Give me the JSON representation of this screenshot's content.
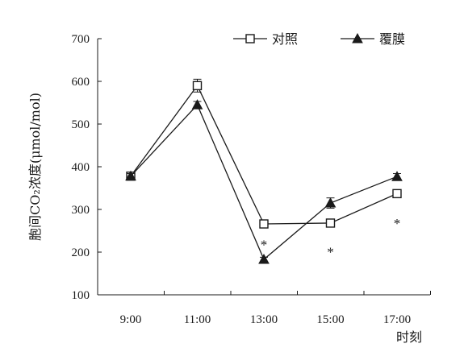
{
  "chart_data": {
    "type": "line",
    "categories": [
      "9:00",
      "11:00",
      "13:00",
      "15:00",
      "17:00"
    ],
    "xlabel": "时刻",
    "ylabel": "胞间CO₂浓度(μmol/mol)",
    "ylim": [
      100,
      700
    ],
    "yticks": [
      100,
      200,
      300,
      400,
      500,
      600,
      700
    ],
    "grid": false,
    "legend_position": "top-right",
    "series": [
      {
        "name": "对照",
        "marker": "open-square",
        "values": [
          378,
          590,
          266,
          268,
          337
        ],
        "errors": [
          6,
          15,
          6,
          8,
          8
        ]
      },
      {
        "name": "覆膜",
        "marker": "filled-triangle",
        "values": [
          378,
          545,
          183,
          315,
          377
        ],
        "errors": [
          6,
          8,
          5,
          12,
          7
        ]
      }
    ],
    "annotations": [
      {
        "text": "*",
        "category": "13:00",
        "y": 222
      },
      {
        "text": "*",
        "category": "15:00",
        "y": 205
      },
      {
        "text": "*",
        "category": "17:00",
        "y": 272
      }
    ]
  },
  "colors": {
    "ink": "#1a1a1a",
    "background": "#ffffff"
  }
}
